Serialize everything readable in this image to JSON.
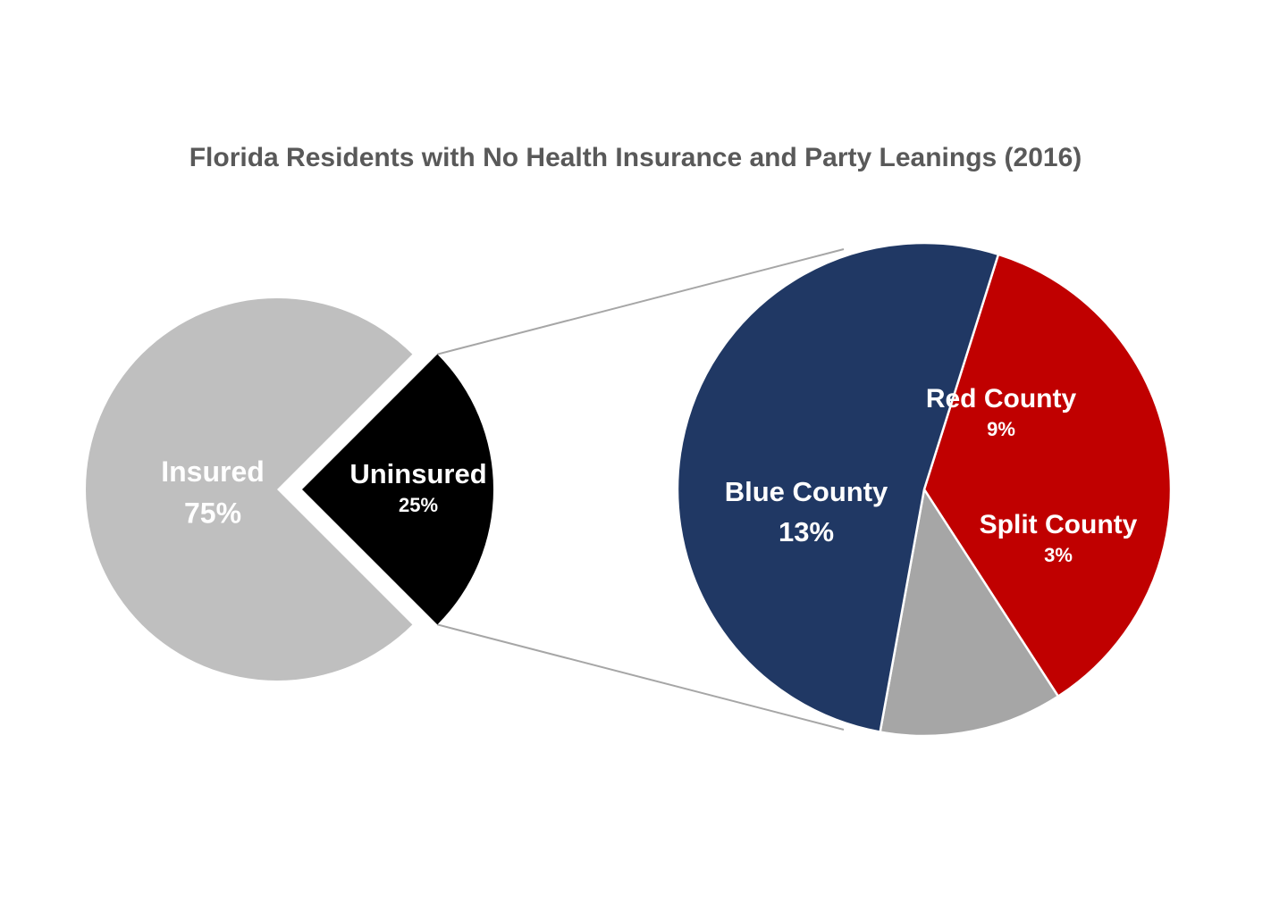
{
  "chart_data": {
    "type": "pie",
    "title": "Florida Residents with No Health Insurance and Party Leanings (2016)",
    "primary": {
      "slices": [
        {
          "label": "Insured",
          "value_label": "75%",
          "value": 75,
          "color": "#bfbfbf",
          "text_color": "#ffffff"
        },
        {
          "label": "Uninsured",
          "value_label": "25%",
          "value": 25,
          "color": "#000000",
          "text_color": "#ffffff"
        }
      ]
    },
    "breakdown": {
      "of": "Uninsured",
      "slices": [
        {
          "label": "Red County",
          "value_label": "9%",
          "value": 9,
          "color": "#c00000",
          "text_color": "#ffffff"
        },
        {
          "label": "Split County",
          "value_label": "3%",
          "value": 3,
          "color": "#a6a6a6",
          "text_color": "#ffffff"
        },
        {
          "label": "Blue County",
          "value_label": "13%",
          "value": 13,
          "color": "#203864",
          "text_color": "#ffffff"
        }
      ]
    }
  }
}
